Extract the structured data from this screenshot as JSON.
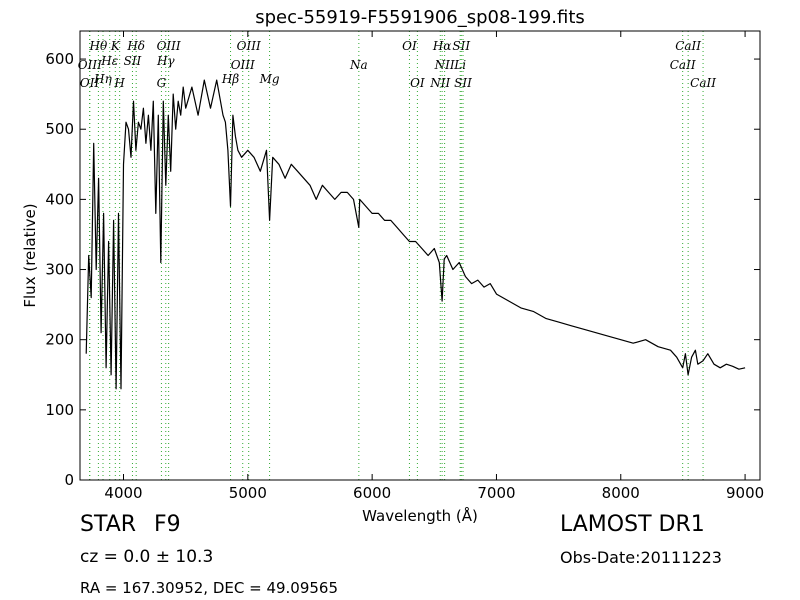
{
  "chart_data": {
    "type": "line",
    "title": "spec-55919-F5591906_sp08-199.fits",
    "xlabel": "Wavelength (Å)",
    "ylabel": "Flux (relative)",
    "xlim": [
      3650,
      9120
    ],
    "ylim": [
      0,
      640
    ],
    "xticks": [
      4000,
      5000,
      6000,
      7000,
      8000,
      9000
    ],
    "yticks": [
      0,
      100,
      200,
      300,
      400,
      500,
      600
    ],
    "grid": false,
    "line_color": "#000000",
    "marker_line_color": "#33aa33",
    "series": [
      {
        "x": [
          3700,
          3720,
          3740,
          3760,
          3780,
          3800,
          3820,
          3840,
          3860,
          3880,
          3900,
          3920,
          3940,
          3960,
          3980,
          4000,
          4020,
          4040,
          4060,
          4080,
          4100,
          4120,
          4140,
          4160,
          4180,
          4200,
          4220,
          4240,
          4260,
          4280,
          4300,
          4320,
          4340,
          4360,
          4380,
          4400,
          4420,
          4440,
          4460,
          4480,
          4500,
          4550,
          4600,
          4650,
          4700,
          4750,
          4800,
          4820,
          4840,
          4861,
          4880,
          4900,
          4920,
          4950,
          5000,
          5050,
          5100,
          5150,
          5175,
          5200,
          5250,
          5300,
          5350,
          5400,
          5450,
          5500,
          5550,
          5600,
          5650,
          5700,
          5750,
          5800,
          5850,
          5893,
          5900,
          5950,
          6000,
          6050,
          6100,
          6150,
          6200,
          6250,
          6300,
          6350,
          6400,
          6450,
          6500,
          6540,
          6563,
          6580,
          6600,
          6650,
          6700,
          6750,
          6800,
          6850,
          6900,
          6950,
          7000,
          7100,
          7200,
          7300,
          7400,
          7500,
          7600,
          7700,
          7800,
          7900,
          8000,
          8100,
          8200,
          8300,
          8400,
          8450,
          8498,
          8520,
          8542,
          8570,
          8600,
          8620,
          8662,
          8700,
          8750,
          8800,
          8850,
          8900,
          8950,
          9000
        ],
        "y": [
          180,
          320,
          260,
          480,
          300,
          430,
          210,
          380,
          160,
          340,
          150,
          370,
          130,
          380,
          130,
          450,
          510,
          500,
          460,
          540,
          470,
          510,
          500,
          530,
          480,
          520,
          470,
          540,
          380,
          520,
          310,
          540,
          420,
          520,
          440,
          550,
          500,
          540,
          520,
          560,
          530,
          560,
          520,
          570,
          530,
          570,
          520,
          510,
          470,
          390,
          520,
          490,
          470,
          460,
          470,
          460,
          440,
          470,
          370,
          460,
          450,
          430,
          450,
          440,
          430,
          420,
          400,
          420,
          410,
          400,
          410,
          410,
          400,
          360,
          400,
          390,
          380,
          380,
          370,
          370,
          360,
          350,
          340,
          340,
          330,
          320,
          330,
          310,
          255,
          315,
          320,
          300,
          310,
          290,
          280,
          285,
          275,
          280,
          265,
          255,
          245,
          240,
          230,
          225,
          220,
          215,
          210,
          205,
          200,
          195,
          200,
          190,
          185,
          175,
          160,
          180,
          150,
          175,
          185,
          165,
          170,
          180,
          165,
          160,
          165,
          162,
          158,
          160
        ]
      }
    ],
    "line_markers": [
      {
        "label": "OII",
        "wavelength": 3727,
        "row": 4
      },
      {
        "label": "OIII",
        "wavelength": 3729,
        "row": 3
      },
      {
        "label": "Hθ",
        "wavelength": 3798,
        "row": 1
      },
      {
        "label": "Hη",
        "wavelength": 3835,
        "row": 3.6
      },
      {
        "label": "Hε",
        "wavelength": 3889,
        "row": 2
      },
      {
        "label": "K",
        "wavelength": 3934,
        "row": 1
      },
      {
        "label": "H",
        "wavelength": 3969,
        "row": 4
      },
      {
        "label": "SII",
        "wavelength": 4072,
        "row": 2
      },
      {
        "label": "Hδ",
        "wavelength": 4102,
        "row": 1
      },
      {
        "label": "G",
        "wavelength": 4305,
        "row": 4
      },
      {
        "label": "Hγ",
        "wavelength": 4340,
        "row": 2
      },
      {
        "label": "OIII",
        "wavelength": 4363,
        "row": 1
      },
      {
        "label": "Hβ",
        "wavelength": 4861,
        "row": 3.6
      },
      {
        "label": "OIII",
        "wavelength": 4959,
        "row": 3
      },
      {
        "label": "OIII",
        "wavelength": 5007,
        "row": 1
      },
      {
        "label": "Mg",
        "wavelength": 5175,
        "row": 3.8
      },
      {
        "label": "Na",
        "wavelength": 5893,
        "row": 3
      },
      {
        "label": "OI",
        "wavelength": 6300,
        "row": 1
      },
      {
        "label": "OI",
        "wavelength": 6364,
        "row": 4
      },
      {
        "label": "NII",
        "wavelength": 6548,
        "row": 4
      },
      {
        "label": "NII",
        "wavelength": 6583,
        "row": 3
      },
      {
        "label": "Hα",
        "wavelength": 6563,
        "row": 1
      },
      {
        "label": "SII",
        "wavelength": 6717,
        "row": 1
      },
      {
        "label": "Li",
        "wavelength": 6708,
        "row": 3
      },
      {
        "label": "SII",
        "wavelength": 6731,
        "row": 4
      },
      {
        "label": "CaII",
        "wavelength": 8498,
        "row": 3
      },
      {
        "label": "CaII",
        "wavelength": 8542,
        "row": 1
      },
      {
        "label": "CaII",
        "wavelength": 8662,
        "row": 4
      }
    ]
  },
  "info": {
    "object_class": "STAR",
    "subclass": "F9",
    "survey": "LAMOST DR1",
    "redshift": "cz = 0.0 ± 10.3",
    "obs_date": "Obs-Date:20111223",
    "coordinates": "RA = 167.30952, DEC = 49.09565"
  }
}
